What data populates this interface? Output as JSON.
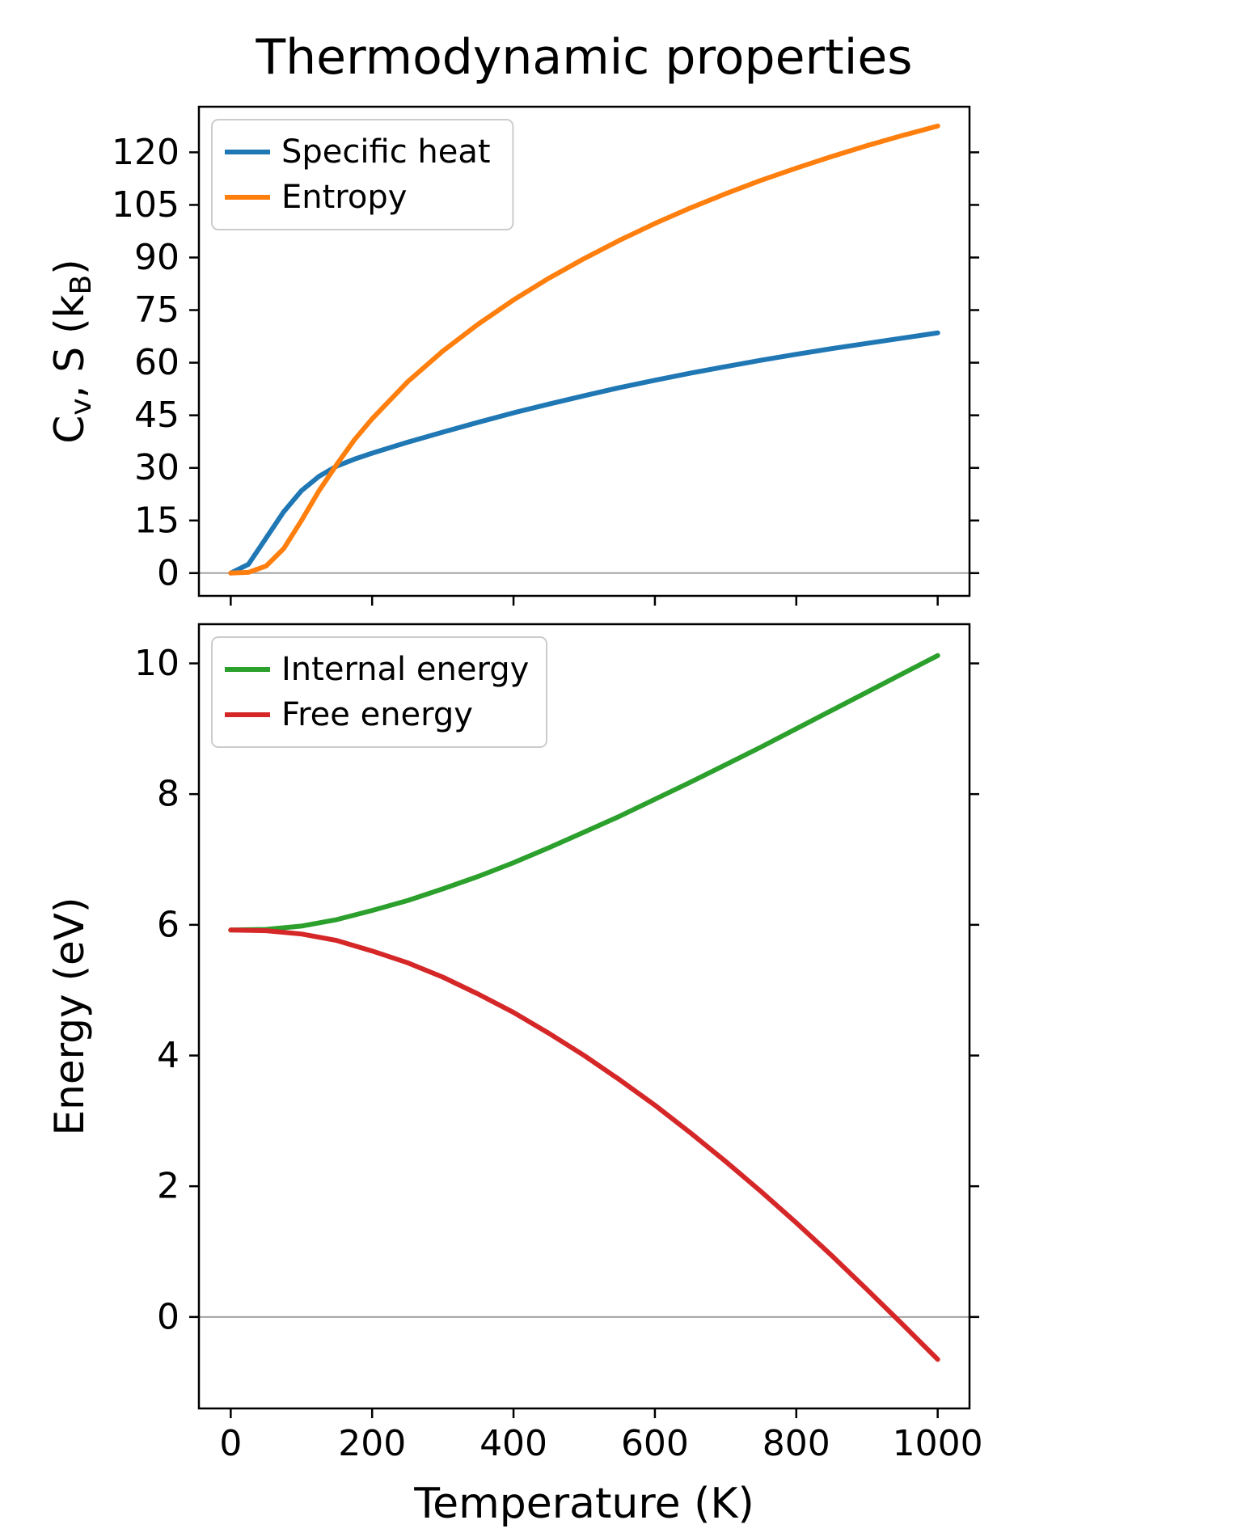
{
  "figure": {
    "title": "Thermodynamic properties",
    "background": "#ffffff",
    "colors": {
      "frame": "#000000",
      "text": "#000000",
      "zero_line": "#a3a3a3",
      "legend_border": "#cccccc",
      "legend_fill": "#ffffff"
    }
  },
  "chart_data": [
    {
      "type": "line",
      "title": "",
      "ylabel": "C_v, S (k_B)",
      "xlabel": "",
      "xlim": [
        -45,
        1045
      ],
      "ylim": [
        -6.5,
        133
      ],
      "x_ticks": [
        0,
        200,
        400,
        600,
        800,
        1000
      ],
      "show_x_tick_labels": false,
      "y_ticks": [
        0,
        15,
        30,
        45,
        60,
        75,
        90,
        105,
        120
      ],
      "zero_line": true,
      "grid": false,
      "legend_position": "upper-left",
      "series": [
        {
          "name": "Specific heat",
          "color": "#1f77b4",
          "x": [
            0,
            25,
            50,
            75,
            100,
            125,
            150,
            175,
            200,
            250,
            300,
            350,
            400,
            450,
            500,
            550,
            600,
            650,
            700,
            750,
            800,
            850,
            900,
            950,
            1000
          ],
          "y": [
            0,
            2.5,
            10,
            17.5,
            23.5,
            27.6,
            30.5,
            32.5,
            34.2,
            37.3,
            40.2,
            43.0,
            45.7,
            48.2,
            50.6,
            52.9,
            55.0,
            57.0,
            58.9,
            60.7,
            62.4,
            64.0,
            65.5,
            67.0,
            68.5
          ]
        },
        {
          "name": "Entropy",
          "color": "#ff7f0e",
          "x": [
            0,
            25,
            50,
            75,
            100,
            125,
            150,
            175,
            200,
            250,
            300,
            350,
            400,
            450,
            500,
            550,
            600,
            650,
            700,
            750,
            800,
            850,
            900,
            950,
            1000
          ],
          "y": [
            0,
            0.2,
            2,
            7,
            15,
            23.5,
            31,
            38,
            44,
            54.5,
            63.3,
            71,
            77.9,
            84.1,
            89.7,
            94.9,
            99.7,
            104.1,
            108.2,
            112,
            115.5,
            118.8,
            121.9,
            124.8,
            127.5
          ]
        }
      ]
    },
    {
      "type": "line",
      "title": "",
      "ylabel": "Energy (eV)",
      "xlabel": "Temperature (K)",
      "xlim": [
        -45,
        1045
      ],
      "ylim": [
        -1.4,
        10.6
      ],
      "x_ticks": [
        0,
        200,
        400,
        600,
        800,
        1000
      ],
      "show_x_tick_labels": true,
      "y_ticks": [
        0,
        2,
        4,
        6,
        8,
        10
      ],
      "zero_line": true,
      "grid": false,
      "legend_position": "upper-left",
      "series": [
        {
          "name": "Internal energy",
          "color": "#2ca02c",
          "x": [
            0,
            50,
            100,
            150,
            200,
            250,
            300,
            350,
            400,
            450,
            500,
            550,
            600,
            650,
            700,
            750,
            800,
            850,
            900,
            950,
            1000
          ],
          "y": [
            5.92,
            5.93,
            5.98,
            6.08,
            6.22,
            6.37,
            6.55,
            6.74,
            6.95,
            7.18,
            7.42,
            7.66,
            7.92,
            8.18,
            8.45,
            8.72,
            9.0,
            9.28,
            9.56,
            9.84,
            10.12
          ]
        },
        {
          "name": "Free energy",
          "color": "#d62728",
          "x": [
            0,
            50,
            100,
            150,
            200,
            250,
            300,
            350,
            400,
            450,
            500,
            550,
            600,
            650,
            700,
            750,
            800,
            850,
            900,
            950,
            1000
          ],
          "y": [
            5.92,
            5.91,
            5.86,
            5.76,
            5.6,
            5.42,
            5.2,
            4.94,
            4.66,
            4.34,
            4.0,
            3.63,
            3.24,
            2.82,
            2.38,
            1.92,
            1.44,
            0.94,
            0.42,
            -0.11,
            -0.65
          ]
        }
      ]
    }
  ]
}
